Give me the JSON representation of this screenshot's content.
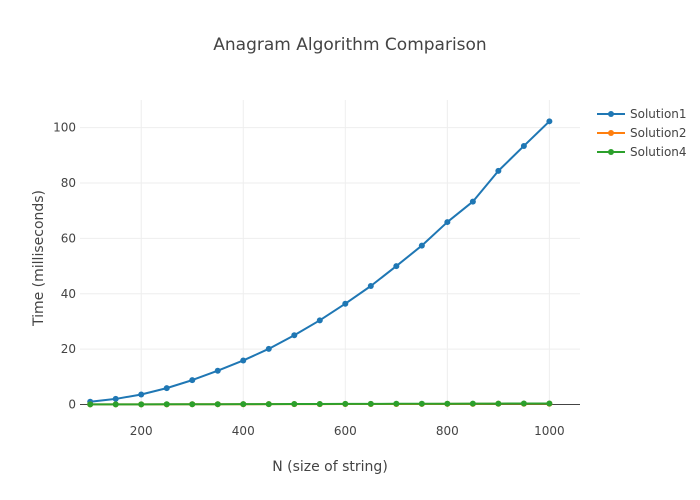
{
  "chart_data": {
    "type": "line",
    "title": "Anagram Algorithm Comparison",
    "xlabel": "N (size of string)",
    "ylabel": "Time (milliseconds)",
    "x": [
      100,
      150,
      200,
      250,
      300,
      350,
      400,
      450,
      500,
      550,
      600,
      650,
      700,
      750,
      800,
      850,
      900,
      950,
      1000
    ],
    "xlim": [
      80,
      1060
    ],
    "ylim": [
      -2,
      110
    ],
    "x_ticks": [
      200,
      400,
      600,
      800,
      1000
    ],
    "y_ticks": [
      0,
      20,
      40,
      60,
      80,
      100
    ],
    "grid": true,
    "legend_position": "top-right",
    "series": [
      {
        "name": "Solution1",
        "color": "#1f77b4",
        "values": [
          1.0,
          2.0,
          3.6,
          5.9,
          8.8,
          12.2,
          15.9,
          20.1,
          25.0,
          30.4,
          36.4,
          42.8,
          50.0,
          57.4,
          65.9,
          73.3,
          84.4,
          93.4,
          102.3
        ]
      },
      {
        "name": "Solution2",
        "color": "#ff7f0e",
        "values": [
          0.02,
          0.03,
          0.04,
          0.05,
          0.07,
          0.08,
          0.09,
          0.11,
          0.12,
          0.13,
          0.15,
          0.16,
          0.18,
          0.19,
          0.21,
          0.22,
          0.24,
          0.25,
          0.27
        ]
      },
      {
        "name": "Solution4",
        "color": "#2ca02c",
        "values": [
          0.03,
          0.04,
          0.05,
          0.06,
          0.08,
          0.1,
          0.12,
          0.14,
          0.16,
          0.18,
          0.2,
          0.22,
          0.24,
          0.26,
          0.28,
          0.3,
          0.32,
          0.34,
          0.36
        ]
      }
    ]
  }
}
